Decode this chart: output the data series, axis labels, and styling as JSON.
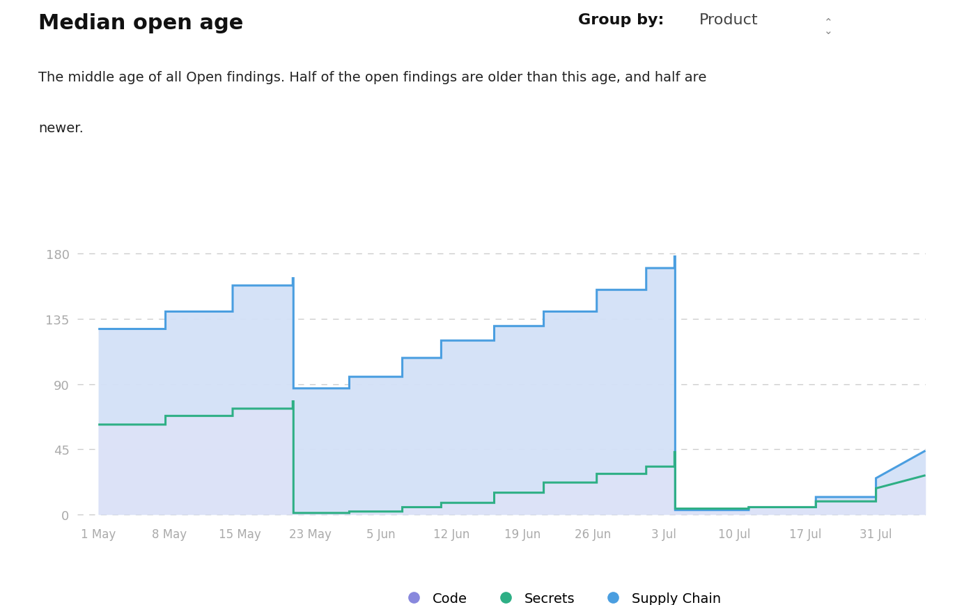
{
  "title": "Median open age",
  "subtitle": "The middle age of all Open findings. Half of the open findings are older than this age, and half are\nnewer.",
  "group_by_label": "Group by:",
  "group_by_value": "Product",
  "background_color": "#ffffff",
  "yticks": [
    0,
    45,
    90,
    135,
    180
  ],
  "ylim": [
    -4,
    205
  ],
  "x_labels": [
    "1 May",
    "8 May",
    "15 May",
    "23 May",
    "5 Jun",
    "12 Jun",
    "19 Jun",
    "26 Jun",
    "3 Jul",
    "10 Jul",
    "17 Jul",
    "31 Jul"
  ],
  "supply_chain_x": [
    0,
    0.95,
    0.95,
    1.9,
    1.9,
    2.75,
    2.75,
    2.76,
    2.76,
    3.55,
    3.55,
    4.3,
    4.3,
    4.85,
    4.85,
    5.6,
    5.6,
    6.3,
    6.3,
    7.05,
    7.05,
    7.75,
    7.75,
    8.15,
    8.15,
    8.16,
    8.16,
    9.2,
    9.2,
    10.15,
    10.15,
    11.0,
    11.0,
    11.7
  ],
  "supply_chain_y": [
    128,
    128,
    140,
    140,
    158,
    158,
    163,
    163,
    87,
    87,
    95,
    95,
    108,
    108,
    120,
    120,
    130,
    130,
    140,
    140,
    155,
    155,
    170,
    170,
    178,
    178,
    3,
    3,
    5,
    5,
    12,
    12,
    25,
    44
  ],
  "secrets_x": [
    0,
    0.95,
    0.95,
    1.45,
    1.45,
    1.9,
    1.9,
    2.35,
    2.35,
    2.75,
    2.75,
    2.76,
    2.76,
    3.55,
    3.55,
    4.3,
    4.3,
    4.85,
    4.85,
    5.6,
    5.6,
    6.3,
    6.3,
    7.05,
    7.05,
    7.75,
    7.75,
    8.15,
    8.15,
    8.16,
    8.16,
    9.2,
    9.2,
    10.15,
    10.15,
    11.0,
    11.0,
    11.7
  ],
  "secrets_y": [
    62,
    62,
    68,
    68,
    68,
    68,
    73,
    73,
    73,
    73,
    78,
    78,
    1,
    1,
    2,
    2,
    5,
    5,
    8,
    8,
    15,
    15,
    22,
    22,
    28,
    28,
    33,
    33,
    43,
    43,
    4,
    4,
    5,
    5,
    9,
    9,
    18,
    27
  ],
  "supply_chain_color": "#4A9EE0",
  "secrets_color": "#2EAF85",
  "code_fill_color": "#dde3f8",
  "supply_fill_color": "#ccdff7",
  "grid_color": "#cccccc",
  "ytick_color": "#aaaaaa",
  "xtick_color": "#aaaaaa",
  "legend_code_color": "#8888dd",
  "legend_secrets_color": "#2EAF85",
  "legend_supply_color": "#4A9EE0"
}
